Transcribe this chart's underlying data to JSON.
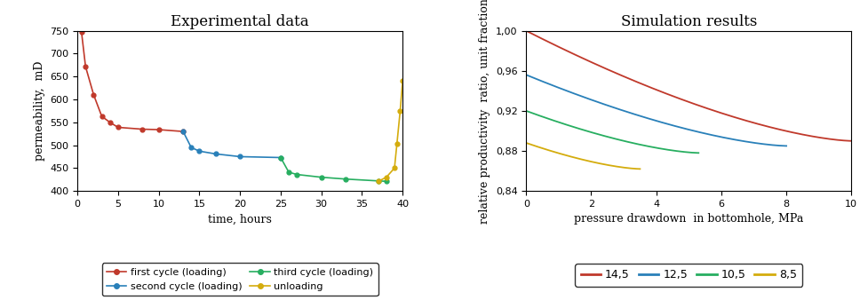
{
  "left_title": "Experimental data",
  "right_title": "Simulation results",
  "cycle1_x": [
    0.5,
    1,
    2,
    3,
    4,
    5,
    8,
    10,
    13
  ],
  "cycle1_y": [
    748,
    672,
    610,
    563,
    550,
    539,
    535,
    534,
    530
  ],
  "cycle1_color": "#c0392b",
  "cycle1_label": "first cycle (loading)",
  "cycle2_x": [
    13,
    14,
    15,
    17,
    20,
    25
  ],
  "cycle2_y": [
    530,
    495,
    487,
    481,
    475,
    473
  ],
  "cycle2_color": "#2980b9",
  "cycle2_label": "second cycle (loading)",
  "cycle3_x": [
    25,
    26,
    27,
    30,
    33,
    37,
    38
  ],
  "cycle3_y": [
    473,
    441,
    436,
    430,
    426,
    422,
    421
  ],
  "cycle3_color": "#27ae60",
  "cycle3_label": "third cycle (loading)",
  "unload_x": [
    37,
    38,
    39,
    39.3,
    39.7,
    40
  ],
  "unload_y": [
    421,
    430,
    450,
    503,
    575,
    641
  ],
  "unload_color": "#d4ac0d",
  "unload_label": "unloading",
  "left_xlabel": "time, hours",
  "left_ylabel": "permeability,  mD",
  "left_xlim": [
    0,
    40
  ],
  "left_ylim": [
    400,
    750
  ],
  "left_xticks": [
    0,
    5,
    10,
    15,
    20,
    25,
    30,
    35,
    40
  ],
  "left_yticks": [
    400,
    450,
    500,
    550,
    600,
    650,
    700,
    750
  ],
  "sim_color_14_5": "#c0392b",
  "sim_label_14_5": "14,5",
  "sim_color_12_5": "#2980b9",
  "sim_label_12_5": "12,5",
  "sim_color_10_5": "#27ae60",
  "sim_label_10_5": "10,5",
  "sim_color_8_5": "#d4ac0d",
  "sim_label_8_5": "8,5",
  "right_xlabel": "pressure drawdown  in bottomhole, MPa",
  "right_ylabel": "relative productivity  ratio, unit fraction",
  "right_xlim": [
    0,
    10
  ],
  "right_ylim": [
    0.84,
    1.0
  ],
  "right_xticks": [
    0,
    2,
    4,
    6,
    8,
    10
  ],
  "right_yticks": [
    0.84,
    0.88,
    0.92,
    0.96,
    1.0
  ]
}
